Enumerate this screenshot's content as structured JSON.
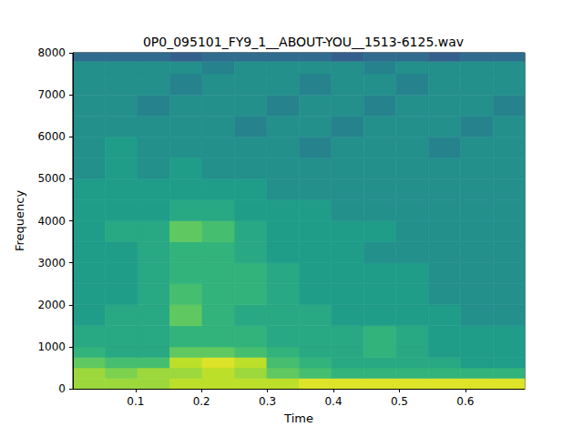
{
  "chart_data": {
    "type": "heatmap",
    "title": "0P0_095101_FY9_1__ABOUT-YOU__1513-6125.wav",
    "x_label": "Time",
    "y_label": "Frequency",
    "xlim": [
      0.005,
      0.69
    ],
    "xticks": [
      0.1,
      0.2,
      0.3,
      0.4,
      0.5,
      0.6
    ],
    "ylim": [
      0,
      8000
    ],
    "yticks": [
      0,
      1000,
      2000,
      3000,
      4000,
      5000,
      6000,
      7000,
      8000
    ],
    "grid": false,
    "color_range": [
      0,
      10
    ],
    "x_edges": [
      0.005,
      0.054,
      0.103,
      0.152,
      0.201,
      0.25,
      0.299,
      0.348,
      0.397,
      0.446,
      0.495,
      0.544,
      0.593,
      0.642,
      0.69
    ],
    "y_edges": [
      0,
      250,
      500,
      750,
      1000,
      1500,
      2000,
      2500,
      3000,
      3500,
      4000,
      4500,
      5000,
      5500,
      6000,
      6500,
      7000,
      7500,
      7800,
      8000
    ],
    "cells": [
      [
        8.5,
        8.5,
        8.5,
        9,
        9,
        9,
        9,
        9.5,
        9.5,
        9.5,
        9.5,
        9.5,
        9.5,
        9.5
      ],
      [
        8.5,
        8,
        8.5,
        8.5,
        9,
        8.5,
        7.5,
        7,
        6.5,
        6.5,
        6.5,
        6.5,
        6.5,
        6.5
      ],
      [
        7.5,
        7,
        7,
        9,
        9.5,
        9,
        7,
        6.5,
        6,
        6,
        6,
        6,
        5.5,
        5.5
      ],
      [
        6.5,
        6,
        6,
        7.5,
        7.5,
        7,
        6.5,
        6,
        6,
        6.5,
        6,
        5.5,
        5.5,
        5.5
      ],
      [
        6,
        6,
        6,
        6.5,
        6.5,
        6.5,
        6,
        6,
        6,
        6.5,
        6,
        5.5,
        5.5,
        5.5
      ],
      [
        5.5,
        6,
        6,
        7.5,
        6.5,
        6,
        6,
        6,
        5.5,
        5.5,
        5.5,
        5.5,
        5,
        5
      ],
      [
        5.5,
        5.5,
        6,
        7,
        6.5,
        6.5,
        6,
        5.5,
        5.5,
        5.5,
        5.5,
        5,
        5,
        5
      ],
      [
        5.5,
        5.5,
        6,
        6.5,
        6.5,
        6.5,
        6,
        5.5,
        5.5,
        5.5,
        5.5,
        5,
        5,
        5
      ],
      [
        5.5,
        5.5,
        6,
        6.5,
        6.5,
        6,
        5.5,
        5.5,
        5.5,
        5,
        5,
        5,
        5,
        5
      ],
      [
        5.5,
        6,
        6,
        7.5,
        7,
        6,
        5.5,
        5.5,
        5.5,
        5.5,
        5,
        5,
        5,
        5
      ],
      [
        5.5,
        5.5,
        5.5,
        6,
        6,
        5.5,
        5.5,
        5.5,
        5,
        5,
        5,
        5,
        5,
        5
      ],
      [
        5.5,
        5.5,
        5.5,
        5.5,
        5.5,
        5.5,
        5,
        5,
        5,
        5,
        5,
        5,
        5,
        5
      ],
      [
        5,
        5.5,
        5,
        5.5,
        5,
        5,
        5,
        5,
        5,
        5,
        5,
        5,
        5,
        5
      ],
      [
        5,
        5.5,
        5,
        5,
        5,
        5,
        5,
        4.5,
        5,
        5,
        5,
        4.5,
        5,
        5
      ],
      [
        5,
        5,
        5,
        5,
        5,
        4.5,
        5,
        5,
        4.5,
        5,
        5,
        5,
        4.5,
        5
      ],
      [
        5,
        5,
        4.5,
        5,
        5,
        5,
        4.5,
        5,
        5,
        4.5,
        5,
        5,
        5,
        4.5
      ],
      [
        5,
        5,
        5,
        4.5,
        5,
        5,
        5,
        4.5,
        5,
        5,
        4.5,
        5,
        5,
        5
      ],
      [
        5,
        5,
        5,
        5,
        4.5,
        5,
        5,
        5,
        5,
        4.5,
        5,
        5,
        5,
        5
      ],
      [
        3.5,
        3.5,
        3.5,
        3,
        3.5,
        3.5,
        3.5,
        3.5,
        3,
        3.5,
        3.5,
        3,
        3.5,
        3.5
      ]
    ]
  }
}
